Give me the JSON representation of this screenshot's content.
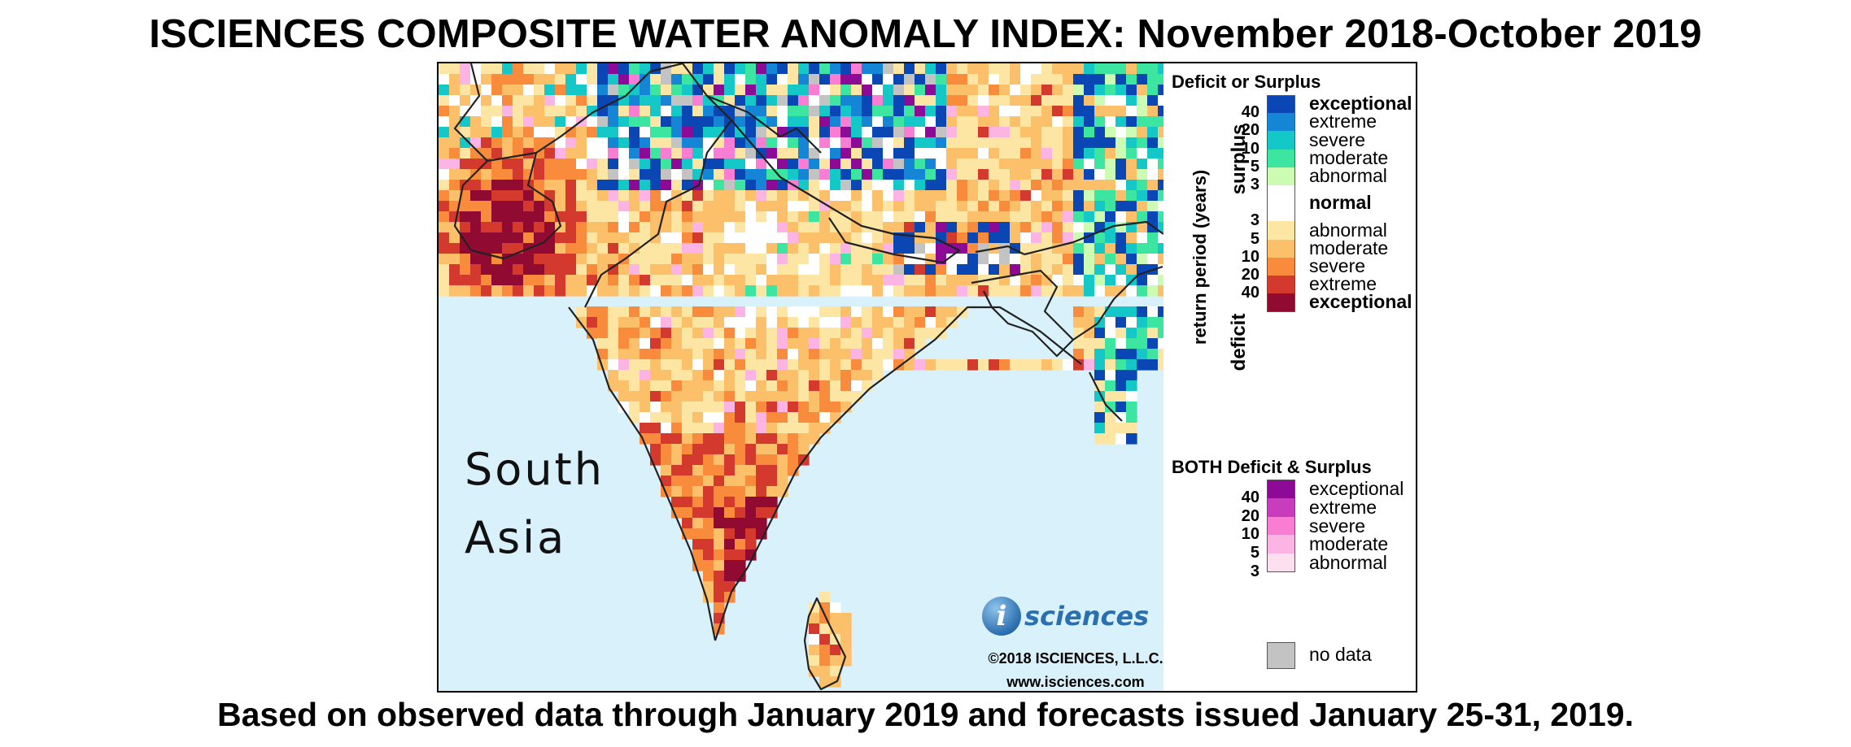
{
  "title": "ISCIENCES COMPOSITE WATER ANOMALY INDEX: November 2018-October 2019",
  "footer": "Based on observed data through January 2019 and forecasts issued January 25-31, 2019.",
  "map": {
    "region_label_line1": "South",
    "region_label_line2": "Asia",
    "ocean_color": "#d9f1fb",
    "logo_letter": "i",
    "logo_text": "sciences",
    "copyright": "©2018 ISCIENCES, L.L.C.",
    "website": "www.isciences.com"
  },
  "legend": {
    "deficit_surplus_heading": "Deficit or Surplus",
    "axis_label": "return period (years)",
    "surplus_label": "surplus",
    "deficit_label": "deficit",
    "surplus_numbers": [
      "40",
      "20",
      "10",
      "5",
      "3"
    ],
    "deficit_numbers": [
      "3",
      "5",
      "10",
      "20",
      "40"
    ],
    "surplus_classes": [
      {
        "label": "exceptional",
        "color": "#0a46b4"
      },
      {
        "label": "extreme",
        "color": "#1585d6"
      },
      {
        "label": "severe",
        "color": "#14c8c8"
      },
      {
        "label": "moderate",
        "color": "#3ce6a0"
      },
      {
        "label": "abnormal",
        "color": "#ccfcb4"
      }
    ],
    "normal": {
      "label": "normal",
      "color": "#ffffff"
    },
    "deficit_classes": [
      {
        "label": "abnormal",
        "color": "#fde6a4"
      },
      {
        "label": "moderate",
        "color": "#fcbf6a"
      },
      {
        "label": "severe",
        "color": "#f98c3c"
      },
      {
        "label": "extreme",
        "color": "#d33a2d"
      },
      {
        "label": "exceptional",
        "color": "#910a32"
      }
    ],
    "both_heading": "BOTH Deficit & Surplus",
    "both_numbers": [
      "40",
      "20",
      "10",
      "5",
      "3"
    ],
    "both_classes": [
      {
        "label": "exceptional",
        "color": "#8c0a96"
      },
      {
        "label": "extreme",
        "color": "#c83cbe"
      },
      {
        "label": "severe",
        "color": "#f97dd2"
      },
      {
        "label": "moderate",
        "color": "#fcb4e4"
      },
      {
        "label": "abnormal",
        "color": "#fde0f0"
      }
    ],
    "no_data": {
      "label": "no data",
      "color": "#c3c3c3"
    }
  }
}
